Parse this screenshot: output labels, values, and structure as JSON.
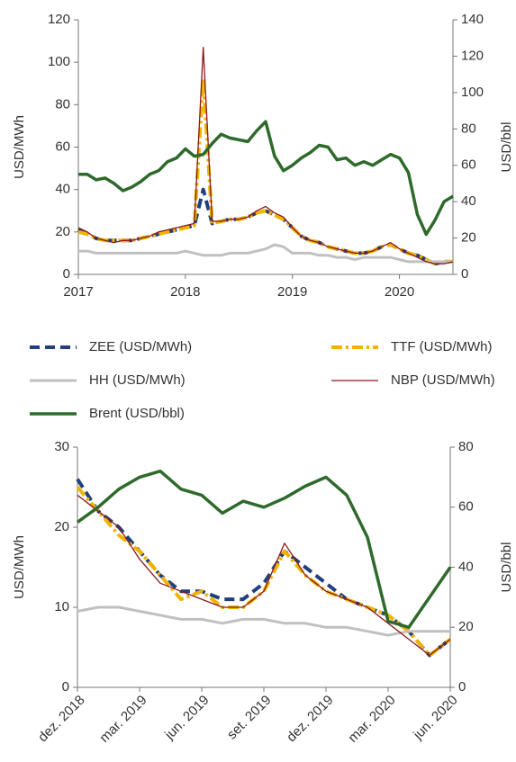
{
  "chart_data": [
    {
      "type": "line",
      "ylabel": "USD/MWh",
      "y2label": "USD/bbl",
      "x": [
        "2017-01",
        "2017-02",
        "2017-03",
        "2017-04",
        "2017-05",
        "2017-06",
        "2017-07",
        "2017-08",
        "2017-09",
        "2017-10",
        "2017-11",
        "2017-12",
        "2018-01",
        "2018-02",
        "2018-03",
        "2018-04",
        "2018-05",
        "2018-06",
        "2018-07",
        "2018-08",
        "2018-09",
        "2018-10",
        "2018-11",
        "2018-12",
        "2019-01",
        "2019-02",
        "2019-03",
        "2019-04",
        "2019-05",
        "2019-06",
        "2019-07",
        "2019-08",
        "2019-09",
        "2019-10",
        "2019-11",
        "2019-12",
        "2020-01",
        "2020-02",
        "2020-03",
        "2020-04",
        "2020-05",
        "2020-06",
        "2020-07"
      ],
      "xlim": [
        "2017-01",
        "2020-07"
      ],
      "xticks": [
        {
          "value": "2017-01",
          "label": "2017"
        },
        {
          "value": "2018-01",
          "label": "2018"
        },
        {
          "value": "2019-01",
          "label": "2019"
        },
        {
          "value": "2020-01",
          "label": "2020"
        }
      ],
      "ylim": [
        0,
        120
      ],
      "yticks": [
        0,
        20,
        40,
        60,
        80,
        100,
        120
      ],
      "y2lim": [
        0,
        140
      ],
      "y2ticks": [
        0,
        20,
        40,
        60,
        80,
        100,
        120,
        140
      ],
      "series": [
        {
          "name": "ZEE (USD/MWh)",
          "color": "#203f7c",
          "dash": "dashed",
          "values": [
            21,
            19,
            17,
            16,
            16,
            16,
            16,
            17,
            18,
            19,
            20,
            21,
            22,
            23,
            40,
            24,
            25,
            26,
            26,
            27,
            29,
            30,
            28,
            26,
            22,
            18,
            16,
            15,
            13,
            12,
            11,
            10,
            10,
            11,
            13,
            14,
            12,
            10,
            9,
            7,
            5,
            6,
            6
          ]
        },
        {
          "name": "TTF (USD/MWh)",
          "color": "#f0b400",
          "dash": "dashdot",
          "values": [
            20,
            19,
            17,
            16,
            16,
            16,
            16,
            17,
            18,
            19,
            20,
            21,
            22,
            23,
            92,
            24,
            25,
            26,
            26,
            27,
            29,
            30,
            28,
            26,
            22,
            18,
            16,
            15,
            13,
            12,
            11,
            10,
            10,
            11,
            13,
            14,
            12,
            10,
            9,
            7,
            5,
            6,
            6
          ]
        },
        {
          "name": "HH (USD/MWh)",
          "color": "#c0c0c0",
          "dash": "solid",
          "values": [
            11,
            11,
            10,
            10,
            10,
            10,
            10,
            10,
            10,
            10,
            10,
            10,
            11,
            10,
            9,
            9,
            9,
            10,
            10,
            10,
            11,
            12,
            14,
            13,
            10,
            10,
            10,
            9,
            9,
            8,
            8,
            7,
            8,
            8,
            8,
            8,
            7,
            6,
            6,
            6,
            6,
            6,
            6
          ]
        },
        {
          "name": "NBP (USD/MWh)",
          "color": "#8b1a1a",
          "dash": "solid",
          "values": [
            22,
            20,
            17,
            16,
            15,
            16,
            16,
            17,
            18,
            20,
            21,
            22,
            23,
            24,
            107,
            25,
            25,
            26,
            26,
            27,
            30,
            32,
            29,
            27,
            22,
            18,
            16,
            15,
            13,
            12,
            11,
            10,
            10,
            11,
            13,
            15,
            12,
            10,
            8,
            6,
            5,
            5,
            6
          ]
        },
        {
          "name": "Brent (USD/bbl)",
          "color": "#2e6a2b",
          "dash": "solid",
          "axis": "y2",
          "values": [
            55,
            55,
            52,
            53,
            50,
            46,
            48,
            51,
            55,
            57,
            62,
            64,
            69,
            65,
            66,
            72,
            77,
            75,
            74,
            73,
            79,
            84,
            65,
            57,
            60,
            64,
            67,
            71,
            70,
            63,
            64,
            60,
            62,
            60,
            63,
            66,
            64,
            56,
            33,
            22,
            30,
            40,
            43
          ]
        }
      ]
    },
    {
      "type": "line",
      "ylabel": "USD/MWh",
      "y2label": "USD/bbl",
      "x": [
        "2018-12",
        "2019-01",
        "2019-02",
        "2019-03",
        "2019-04",
        "2019-05",
        "2019-06",
        "2019-07",
        "2019-08",
        "2019-09",
        "2019-10",
        "2019-11",
        "2019-12",
        "2020-01",
        "2020-02",
        "2020-03",
        "2020-04",
        "2020-05",
        "2020-06"
      ],
      "xlim": [
        "2018-12",
        "2020-06"
      ],
      "xticks": [
        {
          "value": "2018-12",
          "label": "dez. 2018"
        },
        {
          "value": "2019-03",
          "label": "mar. 2019"
        },
        {
          "value": "2019-06",
          "label": "jun. 2019"
        },
        {
          "value": "2019-09",
          "label": "set. 2019"
        },
        {
          "value": "2019-12",
          "label": "dez. 2019"
        },
        {
          "value": "2020-03",
          "label": "mar. 2020"
        },
        {
          "value": "2020-06",
          "label": "jun. 2020"
        }
      ],
      "ylim": [
        0,
        30
      ],
      "yticks": [
        0,
        10,
        20,
        30
      ],
      "y2lim": [
        0,
        80
      ],
      "y2ticks": [
        0,
        20,
        40,
        60,
        80
      ],
      "series": [
        {
          "name": "ZEE (USD/MWh)",
          "color": "#203f7c",
          "dash": "dashed",
          "values": [
            26,
            22,
            20,
            17,
            14,
            12,
            12,
            11,
            11,
            13,
            17,
            15,
            13,
            11,
            10,
            9,
            7,
            4,
            6
          ]
        },
        {
          "name": "TTF (USD/MWh)",
          "color": "#f0b400",
          "dash": "dashdot",
          "values": [
            25,
            22,
            19,
            17,
            14,
            11,
            12,
            10,
            10,
            12,
            17,
            14,
            12,
            11,
            10,
            9,
            7,
            4,
            6
          ]
        },
        {
          "name": "HH (USD/MWh)",
          "color": "#c0c0c0",
          "dash": "solid",
          "values": [
            9.5,
            10,
            10,
            9.5,
            9,
            8.5,
            8.5,
            8,
            8.5,
            8.5,
            8,
            8,
            7.5,
            7.5,
            7,
            6.5,
            7,
            7,
            7
          ]
        },
        {
          "name": "NBP (USD/MWh)",
          "color": "#8b1a1a",
          "dash": "solid",
          "values": [
            24,
            22,
            20,
            16,
            13,
            12,
            11,
            10,
            10,
            12,
            18,
            14,
            12,
            11,
            10,
            8,
            6,
            4,
            6
          ]
        },
        {
          "name": "Brent (USD/bbl)",
          "color": "#2e6a2b",
          "dash": "solid",
          "axis": "y2",
          "values": [
            55,
            60,
            66,
            70,
            72,
            66,
            64,
            58,
            62,
            60,
            63,
            67,
            70,
            64,
            50,
            22,
            20,
            30,
            40
          ]
        }
      ]
    }
  ]
}
